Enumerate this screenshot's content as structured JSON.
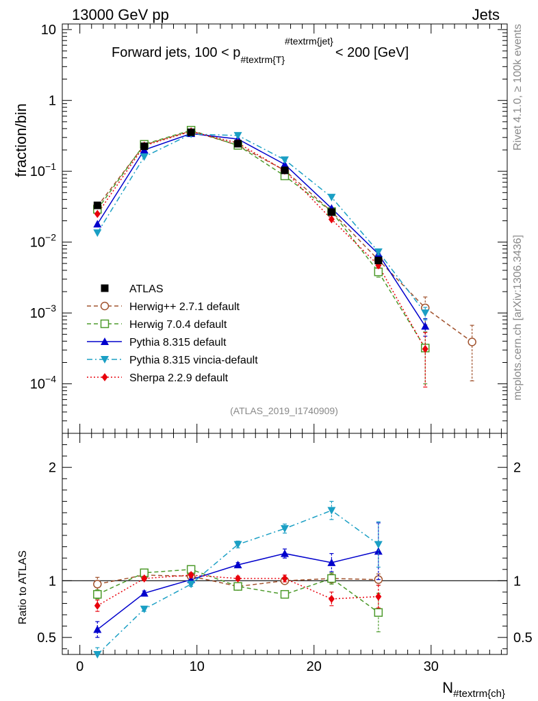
{
  "header": {
    "left": "13000 GeV pp",
    "right": "Jets"
  },
  "side_labels": {
    "rivet": "Rivet 4.1.0, ≥ 100k events",
    "mcplots": "mcplots.cern.ch [arXiv:1306.3436]"
  },
  "chart_data": {
    "type": "line",
    "title_main": "Forward jets, 100 < p",
    "title_sub": "#textrm{T}",
    "title_sup": "#textrm{jet}",
    "title_tail": "< 200 [GeV]",
    "analysis_tag": "(ATLAS_2019_I1740909)",
    "ylabel_top": "fraction/bin",
    "ylabel_ratio": "Ratio to ATLAS",
    "xlabel_main": "N",
    "xlabel_sub": "#textrm{ch}",
    "xlim": [
      -1.5,
      36.5
    ],
    "ylim_top_log": [
      2e-05,
      12
    ],
    "ylim_ratio": [
      0.35,
      2.3
    ],
    "x_ticks": [
      0,
      10,
      20,
      30
    ],
    "x_tick_labels": [
      "0",
      "10",
      "20",
      "30"
    ],
    "y_top_ticks": [
      10,
      1,
      0.1,
      0.01,
      0.001,
      0.0001
    ],
    "y_top_tick_labels": [
      {
        "base": "10",
        "exp": ""
      },
      {
        "base": "1",
        "exp": ""
      },
      {
        "base": "10",
        "exp": "−1"
      },
      {
        "base": "10",
        "exp": "−2"
      },
      {
        "base": "10",
        "exp": "−3"
      },
      {
        "base": "10",
        "exp": "−4"
      }
    ],
    "y_ratio_ticks": [
      2,
      1,
      0.5
    ],
    "y_ratio_tick_labels": [
      "2",
      "1",
      "0.5"
    ],
    "series": [
      {
        "name": "ATLAS",
        "color": "#000000",
        "marker": "square-filled",
        "line": "none",
        "x": [
          1.5,
          5.5,
          9.5,
          13.5,
          17.5,
          21.5,
          25.5
        ],
        "y": [
          0.033,
          0.225,
          0.355,
          0.245,
          0.103,
          0.0265,
          0.0055
        ],
        "ratio": [
          1,
          1,
          1,
          1,
          1,
          1,
          1
        ]
      },
      {
        "name": "Herwig++ 2.7.1 default",
        "color": "#a0522d",
        "marker": "circle-open",
        "line": "dashed",
        "x": [
          1.5,
          5.5,
          9.5,
          13.5,
          17.5,
          21.5,
          25.5,
          29.5,
          33.5
        ],
        "y": [
          0.032,
          0.235,
          0.37,
          0.233,
          0.103,
          0.027,
          0.0056,
          0.00118,
          0.00039
        ],
        "y_err": [
          0,
          0,
          0,
          0,
          0,
          0,
          0,
          0.0005,
          0.00028
        ],
        "ratio": [
          0.97,
          1.05,
          1.04,
          0.95,
          1.0,
          1.02,
          1.01
        ],
        "ratio_err": [
          0.06,
          0.02,
          0.02,
          0.02,
          0.03,
          0.04,
          0.05
        ]
      },
      {
        "name": "Herwig 7.0.4 default",
        "color": "#4c9a2a",
        "marker": "square-open",
        "line": "dashed",
        "x": [
          1.5,
          5.5,
          9.5,
          13.5,
          17.5,
          21.5,
          25.5,
          29.5
        ],
        "y": [
          0.029,
          0.24,
          0.38,
          0.232,
          0.086,
          0.027,
          0.0038,
          0.00032
        ],
        "y_err": [
          0,
          0,
          0,
          0,
          0,
          0,
          0.0006,
          0.00022
        ],
        "ratio": [
          0.88,
          1.07,
          1.1,
          0.95,
          0.88,
          1.02,
          0.72
        ],
        "ratio_err": [
          0.04,
          0.02,
          0.02,
          0.02,
          0.03,
          0.05,
          0.17
        ]
      },
      {
        "name": "Pythia 8.315 default",
        "color": "#0000cc",
        "marker": "triangle-up",
        "line": "solid",
        "x": [
          1.5,
          5.5,
          9.5,
          13.5,
          17.5,
          21.5,
          25.5,
          29.5
        ],
        "y": [
          0.018,
          0.2,
          0.34,
          0.285,
          0.125,
          0.03,
          0.0068,
          0.00065
        ],
        "y_err": [
          0,
          0,
          0,
          0,
          0,
          0,
          0.0006,
          0.00018
        ],
        "ratio": [
          0.57,
          0.89,
          1.01,
          1.14,
          1.24,
          1.16,
          1.26
        ],
        "ratio_err": [
          0.07,
          0.02,
          0.02,
          0.02,
          0.04,
          0.08,
          0.25
        ]
      },
      {
        "name": "Pythia 8.315 vincia-default",
        "color": "#1a9fc4",
        "marker": "triangle-down",
        "line": "dashdot",
        "x": [
          1.5,
          5.5,
          9.5,
          13.5,
          17.5,
          21.5,
          25.5,
          29.5
        ],
        "y": [
          0.0135,
          0.16,
          0.335,
          0.32,
          0.145,
          0.043,
          0.0073,
          0.001
        ],
        "y_err": [
          0,
          0,
          0,
          0,
          0,
          0,
          0.0007,
          0.0002
        ],
        "ratio": [
          0.35,
          0.75,
          0.97,
          1.32,
          1.46,
          1.62,
          1.32
        ],
        "ratio_err": [
          0.06,
          0.02,
          0.02,
          0.03,
          0.04,
          0.08,
          0.2
        ]
      },
      {
        "name": "Sherpa 2.2.9 default",
        "color": "#e8000b",
        "marker": "diamond",
        "line": "dotted",
        "x": [
          1.5,
          5.5,
          9.5,
          13.5,
          17.5,
          21.5,
          25.5,
          29.5
        ],
        "y": [
          0.025,
          0.23,
          0.365,
          0.25,
          0.102,
          0.021,
          0.0047,
          0.00031
        ],
        "y_err": [
          0,
          0,
          0,
          0,
          0,
          0,
          0.0004,
          0.00022
        ],
        "ratio": [
          0.78,
          1.02,
          1.05,
          1.02,
          1.02,
          0.84,
          0.86
        ],
        "ratio_err": [
          0.05,
          0.02,
          0.02,
          0.02,
          0.03,
          0.06,
          0.1
        ]
      }
    ]
  }
}
